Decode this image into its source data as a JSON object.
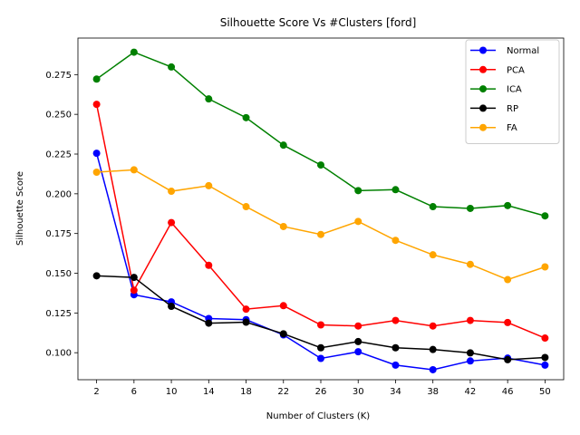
{
  "chart_data": {
    "type": "line",
    "title": "Silhouette Score Vs #Clusters [ford]",
    "xlabel": "Number of Clusters (K)",
    "ylabel": "Silhouette Score",
    "x": [
      2,
      6,
      10,
      14,
      18,
      22,
      26,
      30,
      34,
      38,
      42,
      46,
      50
    ],
    "ylim": [
      0.083,
      0.298
    ],
    "yticks": [
      "0.100",
      "0.125",
      "0.150",
      "0.175",
      "0.200",
      "0.225",
      "0.250",
      "0.275"
    ],
    "legend_position": "upper-right",
    "grid": false,
    "series": [
      {
        "name": "Normal",
        "color": "#0000ff",
        "values": [
          0.2255,
          0.1365,
          0.132,
          0.1215,
          0.1208,
          0.1112,
          0.0964,
          0.1006,
          0.0922,
          0.0893,
          0.0948,
          0.0966,
          0.0922
        ]
      },
      {
        "name": "PCA",
        "color": "#ff0000",
        "values": [
          0.2563,
          0.1393,
          0.1819,
          0.155,
          0.1274,
          0.1296,
          0.1175,
          0.1168,
          0.1203,
          0.1168,
          0.1203,
          0.119,
          0.1092
        ]
      },
      {
        "name": "ICA",
        "color": "#008000",
        "values": [
          0.2722,
          0.2891,
          0.2798,
          0.2597,
          0.2479,
          0.2306,
          0.2181,
          0.202,
          0.2026,
          0.1919,
          0.1908,
          0.1926,
          0.1861
        ]
      },
      {
        "name": "RP",
        "color": "#000000",
        "values": [
          0.1484,
          0.1474,
          0.1292,
          0.1186,
          0.1192,
          0.1119,
          0.1031,
          0.107,
          0.1031,
          0.102,
          0.0999,
          0.0956,
          0.097
        ]
      },
      {
        "name": "FA",
        "color": "#ffa500",
        "values": [
          0.2136,
          0.2151,
          0.2016,
          0.2051,
          0.1919,
          0.1794,
          0.1744,
          0.1826,
          0.1707,
          0.1616,
          0.1556,
          0.146,
          0.154
        ]
      }
    ]
  }
}
